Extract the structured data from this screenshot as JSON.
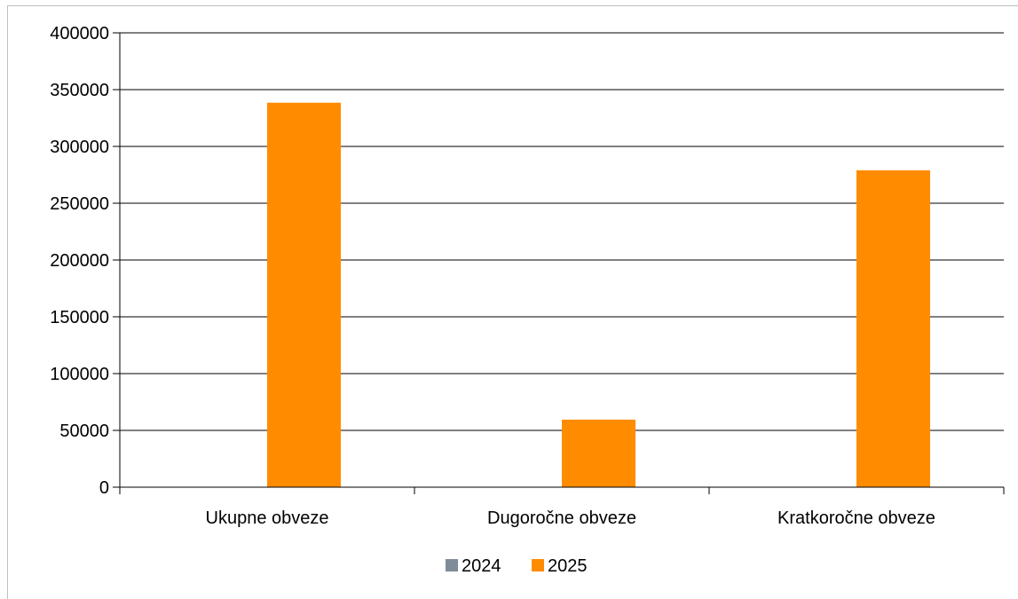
{
  "chart_data": {
    "type": "bar",
    "title": "",
    "xlabel": "",
    "ylabel": "",
    "categories": [
      "Ukupne obveze",
      "Dugoročne obveze",
      "Kratkoročne obveze"
    ],
    "series": [
      {
        "name": "2024",
        "color": "#7f8c99",
        "values": [
          0,
          0,
          0
        ]
      },
      {
        "name": "2025",
        "color": "#ff8c00",
        "values": [
          338500,
          59500,
          279000
        ]
      }
    ],
    "ylim": [
      0,
      400000
    ],
    "yticks": [
      0,
      50000,
      100000,
      150000,
      200000,
      250000,
      300000,
      350000,
      400000
    ],
    "grid": true,
    "legend_position": "bottom"
  }
}
